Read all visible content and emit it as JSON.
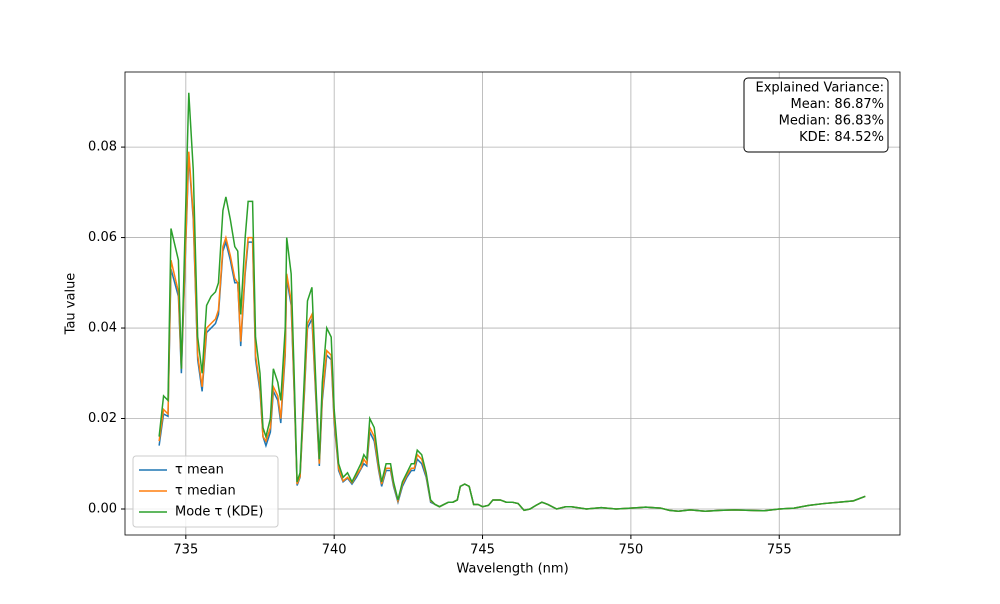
{
  "chart_data": {
    "type": "line",
    "x_label": "Wavelength (nm)",
    "y_label": "Tau value",
    "x": [
      734.1,
      734.25,
      734.4,
      734.5,
      734.75,
      734.85,
      735.1,
      735.25,
      735.4,
      735.55,
      735.7,
      735.85,
      736.0,
      736.1,
      736.25,
      736.35,
      736.5,
      736.65,
      736.75,
      736.85,
      737.0,
      737.1,
      737.25,
      737.35,
      737.5,
      737.6,
      737.7,
      737.85,
      737.95,
      738.1,
      738.2,
      738.35,
      738.4,
      738.55,
      738.65,
      738.75,
      738.85,
      739.0,
      739.1,
      739.25,
      739.4,
      739.5,
      739.6,
      739.75,
      739.9,
      740.0,
      740.15,
      740.3,
      740.45,
      740.6,
      740.75,
      740.9,
      741.0,
      741.1,
      741.2,
      741.35,
      741.5,
      741.6,
      741.75,
      741.9,
      742.0,
      742.15,
      742.3,
      742.45,
      742.6,
      742.7,
      742.8,
      742.95,
      743.1,
      743.25,
      743.4,
      743.55,
      743.7,
      743.85,
      744.0,
      744.15,
      744.25,
      744.4,
      744.55,
      744.7,
      744.85,
      745.0,
      745.2,
      745.35,
      745.6,
      745.8,
      746.0,
      746.2,
      746.4,
      746.6,
      746.8,
      747.0,
      747.2,
      747.5,
      747.8,
      748.0,
      748.5,
      749.0,
      749.5,
      750.0,
      750.5,
      751.0,
      751.3,
      751.6,
      752.0,
      752.5,
      753.0,
      753.5,
      754.0,
      754.5,
      755.0,
      755.5,
      756.0,
      756.5,
      757.0,
      757.5,
      757.9
    ],
    "series": [
      {
        "name": "τ mean",
        "color": "#1f77b4",
        "values": [
          0.014,
          0.021,
          0.0205,
          0.053,
          0.047,
          0.03,
          0.078,
          0.064,
          0.033,
          0.026,
          0.039,
          0.04,
          0.041,
          0.043,
          0.057,
          0.059,
          0.055,
          0.05,
          0.05,
          0.036,
          0.052,
          0.059,
          0.059,
          0.033,
          0.026,
          0.016,
          0.014,
          0.017,
          0.026,
          0.024,
          0.019,
          0.034,
          0.051,
          0.045,
          0.026,
          0.0052,
          0.007,
          0.026,
          0.04,
          0.042,
          0.022,
          0.0095,
          0.024,
          0.034,
          0.033,
          0.019,
          0.0085,
          0.006,
          0.0068,
          0.0055,
          0.007,
          0.0088,
          0.01,
          0.0095,
          0.017,
          0.015,
          0.0085,
          0.005,
          0.0085,
          0.0085,
          0.005,
          0.0015,
          0.005,
          0.007,
          0.0085,
          0.0085,
          0.011,
          0.01,
          0.007,
          0.0015,
          0.001,
          0.0005,
          0.001,
          0.0015,
          0.0015,
          0.002,
          0.005,
          0.0055,
          0.005,
          0.001,
          0.001,
          0.0005,
          0.0008,
          0.002,
          0.002,
          0.0015,
          0.0015,
          0.0012,
          -0.0003,
          0.0,
          0.0008,
          0.0015,
          0.001,
          0.0,
          0.0005,
          0.0005,
          0.0,
          0.0003,
          0.0,
          0.0002,
          0.0004,
          0.0002,
          -0.0003,
          -0.0005,
          -0.0002,
          -0.0005,
          -0.0003,
          -0.0002,
          -0.0003,
          -0.0004,
          0.0,
          0.0002,
          0.0008,
          0.0012,
          0.0015,
          0.0018,
          0.0028
        ]
      },
      {
        "name": "τ median",
        "color": "#ff7f0e",
        "values": [
          0.015,
          0.022,
          0.021,
          0.055,
          0.048,
          0.031,
          0.079,
          0.065,
          0.034,
          0.027,
          0.04,
          0.041,
          0.042,
          0.044,
          0.058,
          0.06,
          0.056,
          0.051,
          0.05,
          0.037,
          0.053,
          0.06,
          0.06,
          0.034,
          0.027,
          0.016,
          0.015,
          0.018,
          0.027,
          0.025,
          0.02,
          0.035,
          0.052,
          0.046,
          0.027,
          0.0055,
          0.0072,
          0.027,
          0.041,
          0.043,
          0.023,
          0.01,
          0.025,
          0.035,
          0.034,
          0.02,
          0.009,
          0.0062,
          0.007,
          0.0058,
          0.0075,
          0.009,
          0.011,
          0.01,
          0.018,
          0.016,
          0.009,
          0.0055,
          0.009,
          0.009,
          0.0055,
          0.0018,
          0.0055,
          0.0075,
          0.009,
          0.009,
          0.012,
          0.011,
          0.0075,
          0.0018,
          0.001,
          0.0005,
          0.001,
          0.0015,
          0.0015,
          0.002,
          0.005,
          0.0055,
          0.005,
          0.001,
          0.001,
          0.0005,
          0.0008,
          0.002,
          0.002,
          0.0015,
          0.0015,
          0.0012,
          -0.0003,
          0.0,
          0.0008,
          0.0015,
          0.001,
          0.0,
          0.0005,
          0.0005,
          0.0,
          0.0003,
          0.0,
          0.0002,
          0.0004,
          0.0002,
          -0.0003,
          -0.0005,
          -0.0002,
          -0.0005,
          -0.0003,
          -0.0002,
          -0.0003,
          -0.0004,
          0.0,
          0.0002,
          0.0008,
          0.0012,
          0.0015,
          0.0018,
          0.0028
        ]
      },
      {
        "name": "Mode τ (KDE)",
        "color": "#2ca02c",
        "values": [
          0.016,
          0.025,
          0.024,
          0.062,
          0.055,
          0.031,
          0.092,
          0.075,
          0.038,
          0.03,
          0.045,
          0.047,
          0.048,
          0.05,
          0.066,
          0.069,
          0.064,
          0.058,
          0.057,
          0.043,
          0.06,
          0.068,
          0.068,
          0.038,
          0.03,
          0.018,
          0.016,
          0.02,
          0.031,
          0.028,
          0.024,
          0.04,
          0.06,
          0.052,
          0.03,
          0.006,
          0.008,
          0.03,
          0.046,
          0.049,
          0.025,
          0.011,
          0.028,
          0.04,
          0.038,
          0.022,
          0.01,
          0.007,
          0.008,
          0.006,
          0.008,
          0.01,
          0.012,
          0.011,
          0.02,
          0.018,
          0.01,
          0.006,
          0.01,
          0.01,
          0.006,
          0.002,
          0.006,
          0.008,
          0.01,
          0.01,
          0.013,
          0.012,
          0.008,
          0.002,
          0.001,
          0.0005,
          0.001,
          0.0015,
          0.0015,
          0.002,
          0.005,
          0.0055,
          0.005,
          0.001,
          0.001,
          0.0005,
          0.0008,
          0.002,
          0.002,
          0.0015,
          0.0015,
          0.0012,
          -0.0003,
          0.0,
          0.0008,
          0.0015,
          0.001,
          0.0,
          0.0005,
          0.0005,
          0.0,
          0.0003,
          0.0,
          0.0002,
          0.0004,
          0.0002,
          -0.0003,
          -0.0005,
          -0.0002,
          -0.0005,
          -0.0003,
          -0.0002,
          -0.0003,
          -0.0004,
          0.0,
          0.0002,
          0.0008,
          0.0012,
          0.0015,
          0.0018,
          0.0028
        ]
      }
    ],
    "xlim": [
      732.95,
      759.07
    ],
    "xticks": [
      735,
      740,
      745,
      750,
      755
    ],
    "ylim": [
      -0.00575,
      0.0966
    ],
    "yticks": [
      {
        "value": 0,
        "label": "0.00"
      },
      {
        "value": 0.02,
        "label": "0.02"
      },
      {
        "value": 0.04,
        "label": "0.04"
      },
      {
        "value": 0.06,
        "label": "0.06"
      },
      {
        "value": 0.08,
        "label": "0.08"
      }
    ],
    "grid": true,
    "legend": "lower left",
    "annotation": [
      "Explained Variance:",
      "Mean: 86.87%",
      "Median: 86.83%",
      "KDE: 84.52%"
    ]
  }
}
